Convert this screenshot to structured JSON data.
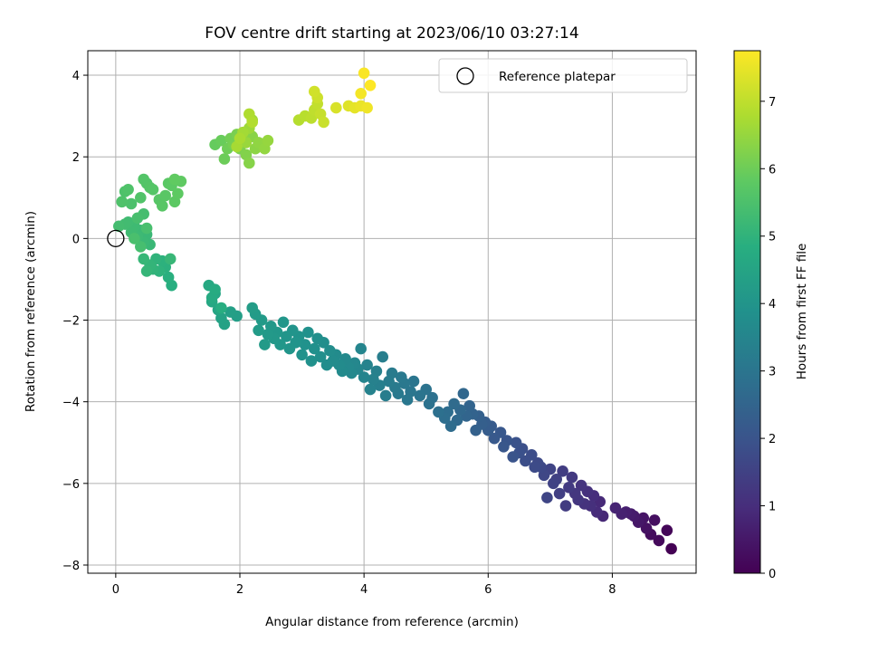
{
  "chart_data": {
    "type": "scatter",
    "title": "FOV centre drift starting at 2023/06/10 03:27:14",
    "xlabel": "Angular distance from reference (arcmin)",
    "ylabel": "Rotation from reference (arcmin)",
    "xlim": [
      -0.45,
      9.35
    ],
    "ylim": [
      -8.2,
      4.6
    ],
    "xticks": [
      0,
      2,
      4,
      6,
      8
    ],
    "yticks": [
      -8,
      -6,
      -4,
      -2,
      0,
      2,
      4
    ],
    "grid": true,
    "legend": {
      "placement": "top-right",
      "entries": [
        "Reference platepar"
      ]
    },
    "reference_point": {
      "x": 0,
      "y": 0
    },
    "colorbar": {
      "label": "Hours from first FF file",
      "range": [
        0,
        7.75
      ],
      "ticks": [
        0,
        1,
        2,
        3,
        4,
        5,
        6,
        7
      ],
      "colormap": "viridis"
    },
    "series": [
      {
        "x": [
          8.95,
          8.88,
          8.75,
          8.62,
          8.68,
          8.55,
          8.5,
          8.42,
          8.35,
          8.3,
          8.22,
          8.15,
          8.05
        ],
        "y": [
          -7.6,
          -7.15,
          -7.4,
          -7.25,
          -6.9,
          -7.1,
          -6.85,
          -6.95,
          -6.8,
          -6.75,
          -6.7,
          -6.75,
          -6.6
        ],
        "t": [
          0.0,
          0.1,
          0.18,
          0.25,
          0.3,
          0.36,
          0.42,
          0.48,
          0.54,
          0.6,
          0.66,
          0.72,
          0.78
        ]
      },
      {
        "x": [
          7.85,
          7.8,
          7.75,
          7.7,
          7.65,
          7.6,
          7.55,
          7.5,
          7.45,
          7.4,
          7.35,
          7.3,
          7.25,
          7.2,
          7.15,
          7.1,
          7.05,
          7.0,
          6.95,
          6.9,
          6.85,
          6.8
        ],
        "y": [
          -6.8,
          -6.45,
          -6.7,
          -6.3,
          -6.55,
          -6.2,
          -6.5,
          -6.05,
          -6.4,
          -6.25,
          -5.85,
          -6.1,
          -6.55,
          -5.7,
          -6.25,
          -5.9,
          -6.0,
          -5.65,
          -6.35,
          -5.8,
          -5.6,
          -5.5
        ],
        "t": [
          0.85,
          0.9,
          0.95,
          1.0,
          1.04,
          1.08,
          1.12,
          1.16,
          1.2,
          1.24,
          1.28,
          1.32,
          1.36,
          1.4,
          1.44,
          1.48,
          1.52,
          1.56,
          1.6,
          1.64,
          1.68,
          1.72
        ]
      },
      {
        "x": [
          6.75,
          6.7,
          6.6,
          6.55,
          6.5,
          6.45,
          6.4,
          6.3,
          6.25,
          6.2,
          6.1,
          6.05,
          6.0,
          5.95,
          5.9,
          5.85,
          5.8,
          5.75,
          5.7,
          5.65,
          5.6,
          5.55,
          5.5,
          5.45,
          5.4,
          5.35,
          5.3
        ],
        "y": [
          -5.6,
          -5.3,
          -5.45,
          -5.15,
          -5.25,
          -5.0,
          -5.35,
          -4.95,
          -5.1,
          -4.75,
          -4.9,
          -4.6,
          -4.7,
          -4.5,
          -4.55,
          -4.35,
          -4.7,
          -4.3,
          -4.1,
          -4.35,
          -3.8,
          -4.2,
          -4.45,
          -4.05,
          -4.6,
          -4.25,
          -4.4
        ],
        "t": [
          1.76,
          1.8,
          1.84,
          1.88,
          1.92,
          1.96,
          2.0,
          2.04,
          2.08,
          2.12,
          2.16,
          2.2,
          2.24,
          2.28,
          2.32,
          2.36,
          2.4,
          2.44,
          2.48,
          2.52,
          2.56,
          2.6,
          2.64,
          2.68,
          2.72,
          2.76,
          2.8
        ]
      },
      {
        "x": [
          5.2,
          5.1,
          5.05,
          5.0,
          4.9,
          4.8,
          4.75,
          4.7,
          4.65,
          4.6,
          4.55,
          4.5,
          4.45,
          4.4,
          4.35,
          4.3,
          4.25,
          4.2,
          4.15,
          4.1,
          4.05,
          4.0,
          3.95,
          3.9,
          3.85,
          3.8
        ],
        "y": [
          -4.25,
          -3.9,
          -4.05,
          -3.7,
          -3.85,
          -3.5,
          -3.75,
          -3.95,
          -3.55,
          -3.4,
          -3.8,
          -3.65,
          -3.3,
          -3.5,
          -3.85,
          -2.9,
          -3.6,
          -3.25,
          -3.45,
          -3.7,
          -3.1,
          -3.4,
          -2.7,
          -3.2,
          -3.05,
          -3.3
        ],
        "t": [
          2.84,
          2.87,
          2.9,
          2.93,
          2.96,
          2.99,
          3.02,
          3.05,
          3.08,
          3.11,
          3.14,
          3.17,
          3.2,
          3.23,
          3.26,
          3.29,
          3.32,
          3.35,
          3.38,
          3.41,
          3.44,
          3.47,
          3.5,
          3.53,
          3.56,
          3.59
        ]
      },
      {
        "x": [
          3.75,
          3.7,
          3.65,
          3.6,
          3.55,
          3.5,
          3.45,
          3.4,
          3.35,
          3.3,
          3.25,
          3.2,
          3.15,
          3.1,
          3.05,
          3.0,
          2.95,
          2.9,
          2.85,
          2.8,
          2.75,
          2.7,
          2.65,
          2.6,
          2.55,
          2.5,
          2.45,
          2.4,
          2.35,
          2.3,
          2.25,
          2.2
        ],
        "y": [
          -3.15,
          -2.95,
          -3.25,
          -3.1,
          -2.85,
          -3.0,
          -2.75,
          -3.1,
          -2.55,
          -2.9,
          -2.45,
          -2.7,
          -3.0,
          -2.3,
          -2.6,
          -2.85,
          -2.4,
          -2.55,
          -2.25,
          -2.7,
          -2.4,
          -2.05,
          -2.6,
          -2.3,
          -2.45,
          -2.15,
          -2.35,
          -2.6,
          -2.0,
          -2.25,
          -1.85,
          -1.7
        ],
        "t": [
          3.62,
          3.64,
          3.66,
          3.68,
          3.7,
          3.72,
          3.74,
          3.76,
          3.78,
          3.8,
          3.82,
          3.84,
          3.86,
          3.88,
          3.9,
          3.92,
          3.94,
          3.96,
          3.98,
          4.0,
          4.02,
          4.04,
          4.06,
          4.08,
          4.1,
          4.12,
          4.14,
          4.16,
          4.18,
          4.2,
          4.22,
          4.24
        ]
      },
      {
        "x": [
          1.95,
          1.85,
          1.75,
          1.7,
          1.65,
          1.6,
          1.55,
          1.5,
          1.55,
          1.6,
          1.7
        ],
        "y": [
          -1.9,
          -1.8,
          -2.1,
          -1.95,
          -1.75,
          -1.35,
          -1.55,
          -1.15,
          -1.45,
          -1.25,
          -1.7
        ],
        "t": [
          4.3,
          4.35,
          4.4,
          4.45,
          4.5,
          4.55,
          4.6,
          4.65,
          4.7,
          4.75,
          4.8
        ]
      },
      {
        "x": [
          0.9,
          0.85,
          0.8,
          0.75,
          0.7,
          0.65,
          0.6,
          0.55,
          0.5,
          0.45,
          0.88
        ],
        "y": [
          -1.15,
          -0.95,
          -0.7,
          -0.55,
          -0.8,
          -0.5,
          -0.75,
          -0.65,
          -0.8,
          -0.5,
          -0.5
        ],
        "t": [
          4.85,
          4.88,
          4.91,
          4.94,
          4.97,
          5.0,
          5.03,
          5.06,
          5.09,
          5.12,
          5.14
        ]
      },
      {
        "x": [
          0.55,
          0.5,
          0.45,
          0.4,
          0.35,
          0.3,
          0.25,
          0.2,
          0.15,
          0.1,
          0.05,
          0.45,
          0.4,
          0.35,
          0.5,
          0.3
        ],
        "y": [
          -0.15,
          0.1,
          -0.1,
          0.2,
          0.05,
          0.3,
          0.15,
          0.4,
          0.35,
          0.9,
          0.3,
          0.6,
          -0.2,
          0.5,
          0.25,
          0.0
        ],
        "t": [
          5.16,
          5.18,
          5.2,
          5.22,
          5.24,
          5.26,
          5.28,
          5.3,
          5.32,
          5.34,
          5.36,
          5.38,
          5.4,
          5.42,
          5.44,
          5.46
        ]
      },
      {
        "x": [
          0.25,
          0.15,
          0.1,
          0.2,
          0.4,
          0.5,
          0.45,
          0.55,
          0.6,
          0.7,
          0.75,
          0.8,
          0.85,
          0.9,
          0.95,
          1.0,
          1.05,
          0.95
        ],
        "y": [
          0.85,
          1.15,
          0.9,
          1.2,
          1.0,
          1.35,
          1.45,
          1.25,
          1.2,
          0.95,
          0.8,
          1.05,
          1.35,
          1.3,
          0.9,
          1.1,
          1.4,
          1.45
        ],
        "t": [
          5.5,
          5.52,
          5.54,
          5.56,
          5.58,
          5.6,
          5.62,
          5.64,
          5.66,
          5.68,
          5.7,
          5.72,
          5.74,
          5.76,
          5.78,
          5.8,
          5.82,
          5.84
        ]
      },
      {
        "x": [
          1.6,
          1.7,
          1.75,
          1.8,
          1.85,
          1.9,
          1.95,
          2.0,
          2.05,
          2.1,
          2.15,
          2.2,
          2.25,
          2.3,
          2.4,
          2.45,
          2.1,
          2.15,
          2.2,
          2.05,
          1.95,
          2.0
        ],
        "y": [
          2.3,
          2.4,
          1.95,
          2.2,
          2.45,
          2.3,
          2.55,
          2.2,
          2.4,
          2.05,
          1.85,
          2.5,
          2.2,
          2.35,
          2.2,
          2.4,
          2.35,
          2.7,
          2.9,
          2.6,
          2.25,
          2.45
        ],
        "t": [
          5.9,
          5.94,
          5.98,
          6.02,
          6.06,
          6.1,
          6.14,
          6.18,
          6.22,
          6.26,
          6.3,
          6.34,
          6.38,
          6.42,
          6.46,
          6.5,
          6.54,
          6.58,
          6.62,
          6.66,
          6.7,
          6.74
        ]
      },
      {
        "x": [
          2.15,
          2.2,
          2.95,
          3.05,
          3.15,
          3.2,
          3.25,
          3.3,
          3.35,
          3.25,
          3.2
        ],
        "y": [
          3.05,
          2.85,
          2.9,
          3.0,
          2.95,
          3.15,
          3.3,
          3.05,
          2.85,
          3.45,
          3.6
        ],
        "t": [
          6.8,
          6.84,
          6.88,
          6.92,
          6.96,
          7.0,
          7.04,
          7.08,
          7.12,
          7.16,
          7.2
        ]
      },
      {
        "x": [
          3.55,
          3.75,
          3.85,
          3.95,
          4.05,
          3.95,
          4.0,
          4.1
        ],
        "y": [
          3.2,
          3.25,
          3.2,
          3.25,
          3.2,
          3.55,
          4.05,
          3.75
        ],
        "t": [
          7.3,
          7.38,
          7.46,
          7.52,
          7.58,
          7.64,
          7.7,
          7.75
        ]
      }
    ]
  }
}
